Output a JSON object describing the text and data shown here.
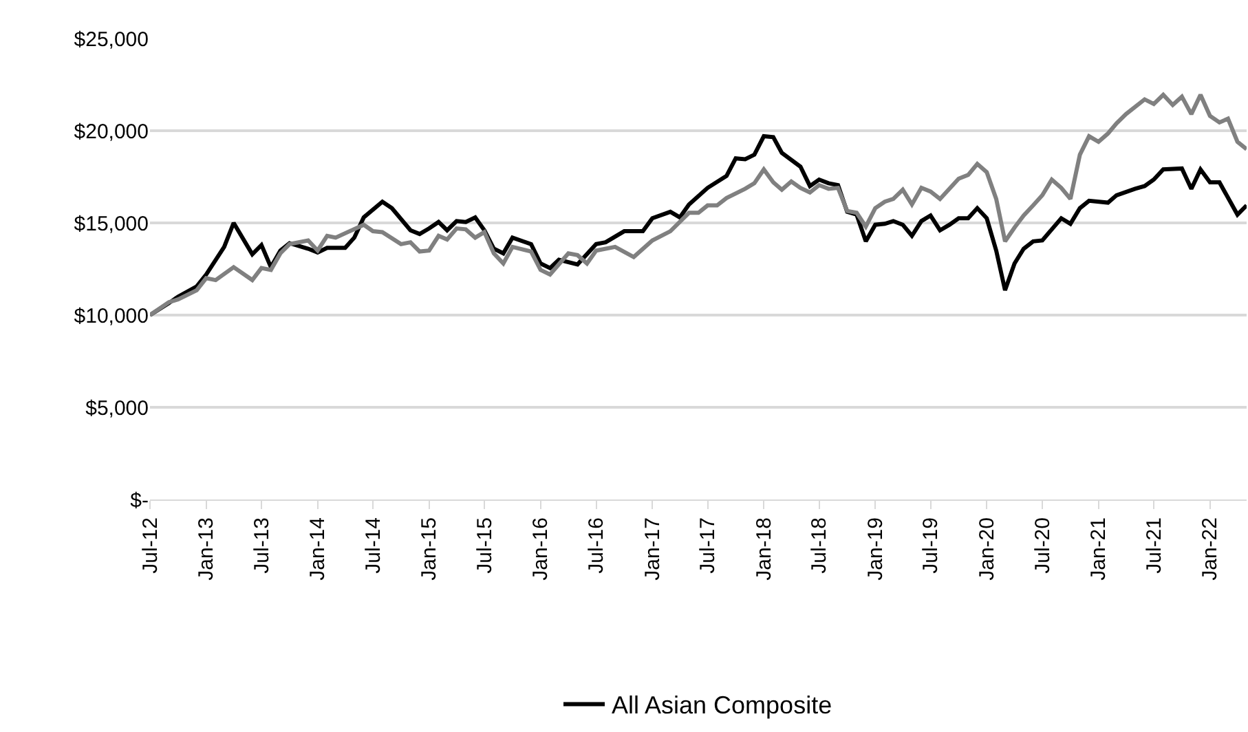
{
  "chart_data": {
    "type": "line",
    "legend": "bottom",
    "grid": "y",
    "line_style": "solid",
    "marker": "none",
    "xlim": [
      "2012-07",
      "2022-05"
    ],
    "xticks": [
      {
        "value": "2012-07",
        "label": "Jul-12"
      },
      {
        "value": "2013-01",
        "label": "Jan-13"
      },
      {
        "value": "2013-07",
        "label": "Jul-13"
      },
      {
        "value": "2014-01",
        "label": "Jan-14"
      },
      {
        "value": "2014-07",
        "label": "Jul-14"
      },
      {
        "value": "2015-01",
        "label": "Jan-15"
      },
      {
        "value": "2015-07",
        "label": "Jul-15"
      },
      {
        "value": "2016-01",
        "label": "Jan-16"
      },
      {
        "value": "2016-07",
        "label": "Jul-16"
      },
      {
        "value": "2017-01",
        "label": "Jan-17"
      },
      {
        "value": "2017-07",
        "label": "Jul-17"
      },
      {
        "value": "2018-01",
        "label": "Jan-18"
      },
      {
        "value": "2018-07",
        "label": "Jul-18"
      },
      {
        "value": "2019-01",
        "label": "Jan-19"
      },
      {
        "value": "2019-07",
        "label": "Jul-19"
      },
      {
        "value": "2020-01",
        "label": "Jan-20"
      },
      {
        "value": "2020-07",
        "label": "Jul-20"
      },
      {
        "value": "2021-01",
        "label": "Jan-21"
      },
      {
        "value": "2021-07",
        "label": "Jul-21"
      },
      {
        "value": "2022-01",
        "label": "Jan-22"
      }
    ],
    "ylim": [
      0,
      25000
    ],
    "yticks": [
      {
        "value": 0,
        "label": "$-"
      },
      {
        "value": 5000,
        "label": "$5,000"
      },
      {
        "value": 10000,
        "label": "$10,000"
      },
      {
        "value": 15000,
        "label": "$15,000"
      },
      {
        "value": 20000,
        "label": "$20,000"
      },
      {
        "value": 25000,
        "label": "$25,000"
      }
    ],
    "series": [
      {
        "name": "All Asian Composite",
        "color": "#000000",
        "x": [
          "2012-07",
          "2012-09",
          "2012-10",
          "2012-12",
          "2013-01",
          "2013-03",
          "2013-04",
          "2013-06",
          "2013-07",
          "2013-08",
          "2013-09",
          "2013-10",
          "2013-12",
          "2014-01",
          "2014-02",
          "2014-04",
          "2014-05",
          "2014-06",
          "2014-08",
          "2014-09",
          "2014-11",
          "2014-12",
          "2015-01",
          "2015-02",
          "2015-03",
          "2015-04",
          "2015-05",
          "2015-06",
          "2015-07",
          "2015-08",
          "2015-09",
          "2015-10",
          "2015-12",
          "2016-01",
          "2016-02",
          "2016-03",
          "2016-05",
          "2016-07",
          "2016-08",
          "2016-10",
          "2016-12",
          "2017-01",
          "2017-03",
          "2017-04",
          "2017-05",
          "2017-07",
          "2017-09",
          "2017-10",
          "2017-11",
          "2017-12",
          "2018-01",
          "2018-02",
          "2018-03",
          "2018-05",
          "2018-06",
          "2018-07",
          "2018-08",
          "2018-09",
          "2018-10",
          "2018-11",
          "2018-12",
          "2019-01",
          "2019-02",
          "2019-03",
          "2019-04",
          "2019-05",
          "2019-06",
          "2019-07",
          "2019-08",
          "2019-09",
          "2019-10",
          "2019-11",
          "2019-12",
          "2020-01",
          "2020-02",
          "2020-03",
          "2020-04",
          "2020-05",
          "2020-06",
          "2020-07",
          "2020-08",
          "2020-09",
          "2020-10",
          "2020-11",
          "2020-12",
          "2021-02",
          "2021-03",
          "2021-05",
          "2021-06",
          "2021-07",
          "2021-08",
          "2021-10",
          "2021-11",
          "2021-12",
          "2022-01",
          "2022-02",
          "2022-04",
          "2022-05"
        ],
        "values": [
          10000,
          10650,
          11000,
          11550,
          12200,
          13700,
          15000,
          13300,
          13800,
          12600,
          13500,
          13900,
          13600,
          13400,
          13650,
          13650,
          14200,
          15300,
          16150,
          15800,
          14600,
          14400,
          14700,
          15050,
          14600,
          15100,
          15050,
          15300,
          14600,
          13600,
          13350,
          14200,
          13850,
          12800,
          12550,
          13000,
          12750,
          13850,
          13950,
          14550,
          14550,
          15250,
          15600,
          15300,
          16000,
          16900,
          17550,
          18500,
          18450,
          18700,
          19700,
          19650,
          18800,
          18050,
          17000,
          17350,
          17150,
          17050,
          15600,
          15450,
          14000,
          14900,
          14950,
          15100,
          14900,
          14300,
          15100,
          15400,
          14600,
          14900,
          15250,
          15250,
          15800,
          15250,
          13500,
          11350,
          12800,
          13600,
          14000,
          14050,
          14650,
          15250,
          14950,
          15800,
          16200,
          16100,
          16500,
          16850,
          17000,
          17350,
          17900,
          17950,
          16850,
          17900,
          17200,
          17200,
          15450,
          15950
        ]
      },
      {
        "color": "#808080",
        "x": [
          "2012-07",
          "2012-09",
          "2012-10",
          "2012-12",
          "2013-01",
          "2013-02",
          "2013-04",
          "2013-06",
          "2013-07",
          "2013-08",
          "2013-09",
          "2013-10",
          "2013-12",
          "2014-01",
          "2014-02",
          "2014-03",
          "2014-06",
          "2014-07",
          "2014-08",
          "2014-10",
          "2014-11",
          "2014-12",
          "2015-01",
          "2015-02",
          "2015-03",
          "2015-04",
          "2015-05",
          "2015-06",
          "2015-07",
          "2015-08",
          "2015-09",
          "2015-10",
          "2015-12",
          "2016-01",
          "2016-02",
          "2016-04",
          "2016-05",
          "2016-06",
          "2016-07",
          "2016-09",
          "2016-11",
          "2017-01",
          "2017-03",
          "2017-05",
          "2017-06",
          "2017-07",
          "2017-08",
          "2017-09",
          "2017-11",
          "2017-12",
          "2018-01",
          "2018-02",
          "2018-03",
          "2018-04",
          "2018-05",
          "2018-06",
          "2018-07",
          "2018-08",
          "2018-09",
          "2018-10",
          "2018-11",
          "2018-12",
          "2019-01",
          "2019-02",
          "2019-03",
          "2019-04",
          "2019-05",
          "2019-06",
          "2019-07",
          "2019-08",
          "2019-10",
          "2019-11",
          "2019-12",
          "2020-01",
          "2020-02",
          "2020-03",
          "2020-04",
          "2020-05",
          "2020-06",
          "2020-07",
          "2020-08",
          "2020-09",
          "2020-10",
          "2020-11",
          "2020-12",
          "2021-01",
          "2021-02",
          "2021-03",
          "2021-04",
          "2021-06",
          "2021-07",
          "2021-08",
          "2021-09",
          "2021-10",
          "2021-11",
          "2021-12",
          "2022-01",
          "2022-02",
          "2022-03",
          "2022-04",
          "2022-05"
        ],
        "values": [
          10000,
          10700,
          10850,
          11350,
          12000,
          11900,
          12600,
          11900,
          12550,
          12450,
          13350,
          13850,
          14050,
          13500,
          14300,
          14200,
          14900,
          14550,
          14500,
          13850,
          13950,
          13450,
          13500,
          14300,
          14100,
          14700,
          14650,
          14200,
          14500,
          13350,
          12800,
          13700,
          13450,
          12450,
          12200,
          13350,
          13250,
          12800,
          13500,
          13700,
          13150,
          14050,
          14550,
          15550,
          15550,
          15950,
          15950,
          16350,
          16850,
          17150,
          17900,
          17200,
          16800,
          17250,
          16900,
          16650,
          17050,
          16850,
          16900,
          15650,
          15550,
          14800,
          15800,
          16150,
          16300,
          16800,
          16000,
          16900,
          16700,
          16300,
          17400,
          17600,
          18200,
          17750,
          16300,
          14000,
          14750,
          15400,
          15950,
          16500,
          17350,
          16900,
          16300,
          18700,
          19700,
          19400,
          19850,
          20400,
          20900,
          21700,
          21450,
          21950,
          21400,
          21850,
          20900,
          21950,
          20800,
          20450,
          20650,
          19400,
          19000
        ]
      }
    ]
  }
}
